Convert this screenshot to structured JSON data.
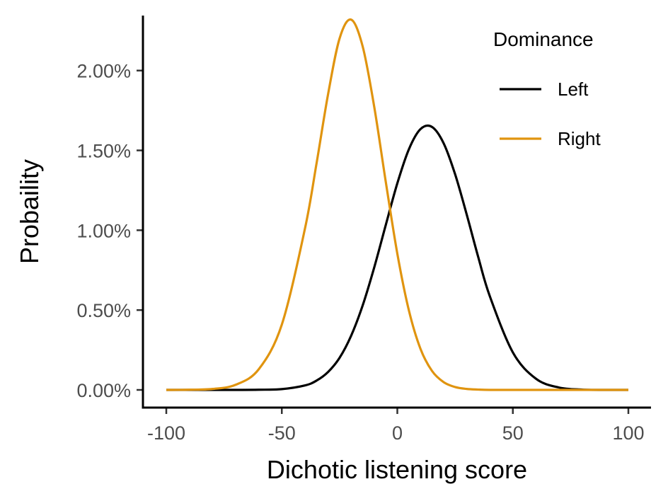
{
  "chart_data": {
    "type": "line",
    "title": "",
    "xlabel": "Dichotic listening score",
    "ylabel": "Probaility",
    "xlim": [
      -100,
      100
    ],
    "ylim": [
      0,
      0.0234
    ],
    "x_ticks": [
      -100,
      -50,
      0,
      50,
      100
    ],
    "x_tick_labels": [
      "-100",
      "-50",
      "0",
      "50",
      "100"
    ],
    "y_ticks": [
      0,
      0.005,
      0.01,
      0.015,
      0.02
    ],
    "y_tick_labels": [
      "0.00%",
      "0.50%",
      "1.00%",
      "1.50%",
      "2.00%"
    ],
    "grid": false,
    "legend": {
      "title": "Dominance",
      "position": "top-right"
    },
    "x": [
      -100,
      -90,
      -80,
      -70,
      -60,
      -50,
      -40,
      -35,
      -30,
      -25,
      -20,
      -15,
      -10,
      -5,
      0,
      5,
      10,
      15,
      20,
      25,
      30,
      35,
      40,
      50,
      60,
      70,
      80,
      90,
      100
    ],
    "series": [
      {
        "name": "Left",
        "color": "#000000",
        "values": [
          0.0,
          0.0,
          0.0,
          0.0,
          1e-05,
          5e-05,
          0.00028,
          0.00058,
          0.00112,
          0.00201,
          0.00339,
          0.00529,
          0.00767,
          0.01033,
          0.01294,
          0.01507,
          0.01633,
          0.01647,
          0.01546,
          0.01351,
          0.011,
          0.00833,
          0.00588,
          0.00235,
          0.0007,
          0.00015,
          2e-05,
          0.0,
          0.0
        ]
      },
      {
        "name": "Right",
        "color": "#e0940f",
        "values": [
          0.0,
          1e-05,
          6e-05,
          0.00032,
          0.00129,
          0.00409,
          0.01009,
          0.01416,
          0.0185,
          0.02201,
          0.02319,
          0.02151,
          0.01773,
          0.01303,
          0.00853,
          0.00498,
          0.00258,
          0.00119,
          0.00049,
          0.00018,
          6e-05,
          2e-05,
          0.0,
          0.0,
          0.0,
          0.0,
          0.0,
          0.0,
          0.0
        ]
      }
    ]
  }
}
